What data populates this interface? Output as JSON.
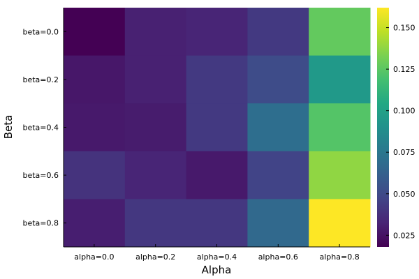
{
  "chart_data": {
    "type": "heatmap",
    "title": "",
    "xlabel": "Alpha",
    "ylabel": "Beta",
    "x_categories": [
      "alpha=0.0",
      "alpha=0.2",
      "alpha=0.4",
      "alpha=0.6",
      "alpha=0.8"
    ],
    "y_categories": [
      "beta=0.0",
      "beta=0.2",
      "beta=0.4",
      "beta=0.6",
      "beta=0.8"
    ],
    "values": [
      [
        0.018,
        0.031,
        0.033,
        0.042,
        0.127
      ],
      [
        0.027,
        0.031,
        0.042,
        0.051,
        0.095
      ],
      [
        0.028,
        0.029,
        0.042,
        0.07,
        0.123
      ],
      [
        0.039,
        0.033,
        0.028,
        0.047,
        0.138
      ],
      [
        0.03,
        0.041,
        0.041,
        0.067,
        0.162
      ]
    ],
    "colorbar": {
      "colormap": "viridis",
      "range": [
        0.018,
        0.162
      ],
      "ticks": [
        0.025,
        0.05,
        0.075,
        0.1,
        0.125,
        0.15
      ],
      "tick_labels": [
        "0.025",
        "0.050",
        "0.075",
        "0.100",
        "0.125",
        "0.150"
      ]
    },
    "grid": false,
    "legend": "colorbar-right"
  }
}
